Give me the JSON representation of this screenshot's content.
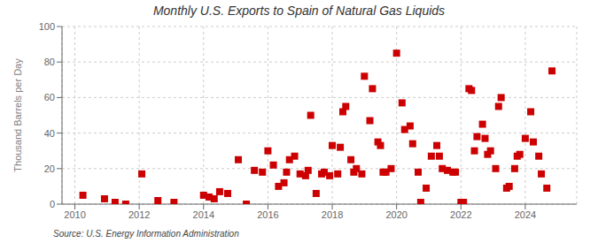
{
  "chart_data": {
    "type": "scatter",
    "title": "Monthly U.S. Exports to Spain of Natural Gas Liquids",
    "y_label": "Thousand Barrels per Day",
    "annotations": [
      "Source: U.S. Energy Information Administration"
    ],
    "color": "#cc0000",
    "marker": "square",
    "grid": true,
    "xlim": [
      2009.6,
      2025.6
    ],
    "xticks": [
      2010,
      2012,
      2014,
      2016,
      2018,
      2020,
      2022,
      2024
    ],
    "ylim": [
      0,
      100
    ],
    "yticks": [
      0,
      20,
      40,
      60,
      80,
      100
    ],
    "x": [
      2010.25,
      2010.92,
      2011.25,
      2011.58,
      2012.08,
      2012.58,
      2013.08,
      2014.0,
      2014.17,
      2014.33,
      2014.5,
      2014.75,
      2015.08,
      2015.33,
      2015.58,
      2015.83,
      2016.0,
      2016.17,
      2016.33,
      2016.5,
      2016.58,
      2016.67,
      2016.83,
      2017.0,
      2017.17,
      2017.25,
      2017.33,
      2017.5,
      2017.67,
      2017.75,
      2017.92,
      2018.0,
      2018.17,
      2018.25,
      2018.33,
      2018.42,
      2018.58,
      2018.67,
      2018.75,
      2018.92,
      2019.0,
      2019.17,
      2019.25,
      2019.42,
      2019.5,
      2019.58,
      2019.67,
      2019.83,
      2020.0,
      2020.17,
      2020.25,
      2020.42,
      2020.5,
      2020.67,
      2020.75,
      2020.92,
      2021.08,
      2021.25,
      2021.33,
      2021.42,
      2021.58,
      2021.75,
      2021.83,
      2022.0,
      2022.08,
      2022.25,
      2022.33,
      2022.42,
      2022.5,
      2022.67,
      2022.75,
      2022.83,
      2022.92,
      2023.08,
      2023.17,
      2023.25,
      2023.42,
      2023.5,
      2023.67,
      2023.75,
      2023.83,
      2024.0,
      2024.17,
      2024.25,
      2024.42,
      2024.5,
      2024.67,
      2024.83
    ],
    "values": [
      5,
      3,
      1,
      0,
      17,
      2,
      1,
      5,
      4,
      3,
      7,
      6,
      25,
      0,
      19,
      18,
      30,
      22,
      10,
      12,
      18,
      25,
      27,
      17,
      16,
      19,
      50,
      6,
      17,
      18,
      16,
      33,
      17,
      32,
      52,
      55,
      25,
      18,
      20,
      17,
      72,
      47,
      65,
      35,
      33,
      18,
      18,
      20,
      85,
      57,
      42,
      44,
      34,
      18,
      1,
      9,
      27,
      33,
      27,
      20,
      19,
      18,
      18,
      1,
      1,
      65,
      64,
      30,
      38,
      45,
      37,
      28,
      30,
      20,
      55,
      60,
      9,
      10,
      20,
      27,
      28,
      37,
      52,
      35,
      27,
      17,
      9,
      75
    ]
  }
}
